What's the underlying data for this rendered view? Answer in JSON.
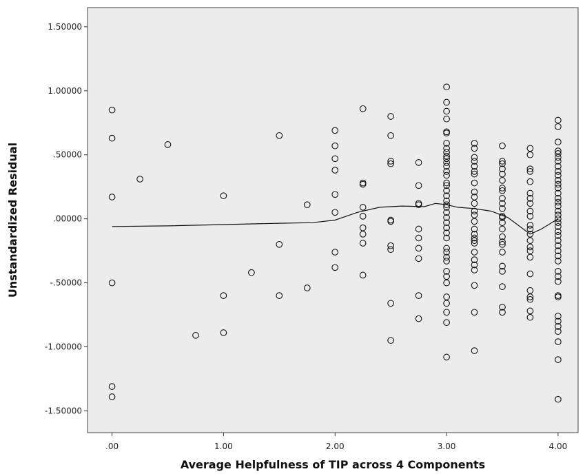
{
  "chart_data": {
    "type": "scatter",
    "title": "",
    "xlabel": "Average Helpfulness of TIP across 4 Components",
    "ylabel": "Unstandardized Residual",
    "xlim": [
      -0.22,
      4.18
    ],
    "ylim": [
      -1.67,
      1.65
    ],
    "x_ticks": [
      0,
      1,
      2,
      3,
      4
    ],
    "x_tick_labels": [
      ".00",
      "1.00",
      "2.00",
      "3.00",
      "4.00"
    ],
    "y_ticks": [
      1.5,
      1.0,
      0.5,
      0.0,
      -0.5,
      -1.0,
      -1.5
    ],
    "y_tick_labels": [
      "1.50000",
      "1.00000",
      ".50000",
      ".00000",
      "-.50000",
      "-1.00000",
      "-1.50000"
    ],
    "grid": false,
    "colors": {
      "plot_background": "#ececec",
      "marker": "#111111",
      "line": "#111111"
    },
    "points_by_x": [
      {
        "x": 0.0,
        "y": [
          0.85,
          0.63,
          0.17,
          -0.5,
          -1.31,
          -1.39
        ]
      },
      {
        "x": 0.25,
        "y": [
          0.31
        ]
      },
      {
        "x": 0.5,
        "y": [
          0.58
        ]
      },
      {
        "x": 0.75,
        "y": [
          -0.91
        ]
      },
      {
        "x": 1.0,
        "y": [
          0.18,
          -0.6,
          -0.89
        ]
      },
      {
        "x": 1.25,
        "y": [
          -0.42
        ]
      },
      {
        "x": 1.5,
        "y": [
          0.65,
          -0.2,
          -0.6
        ]
      },
      {
        "x": 1.75,
        "y": [
          0.11,
          -0.54
        ]
      },
      {
        "x": 2.0,
        "y": [
          0.69,
          0.57,
          0.47,
          0.38,
          0.19,
          0.05,
          -0.26,
          -0.38
        ]
      },
      {
        "x": 2.25,
        "y": [
          0.86,
          0.28,
          0.27,
          0.09,
          0.02,
          -0.07,
          -0.12,
          -0.19,
          -0.44
        ]
      },
      {
        "x": 2.5,
        "y": [
          0.8,
          0.65,
          0.45,
          0.43,
          -0.01,
          -0.02,
          -0.21,
          -0.24,
          -0.66,
          -0.95
        ]
      },
      {
        "x": 2.75,
        "y": [
          0.44,
          0.26,
          0.12,
          0.11,
          -0.08,
          -0.15,
          -0.23,
          -0.31,
          -0.6,
          -0.78
        ]
      },
      {
        "x": 3.0,
        "y": [
          1.03,
          0.91,
          0.84,
          0.78,
          0.68,
          0.67,
          0.59,
          0.55,
          0.52,
          0.49,
          0.47,
          0.44,
          0.41,
          0.37,
          0.34,
          0.28,
          0.26,
          0.22,
          0.18,
          0.14,
          0.11,
          0.09,
          0.05,
          0.01,
          -0.03,
          -0.07,
          -0.11,
          -0.15,
          -0.23,
          -0.26,
          -0.3,
          -0.33,
          -0.41,
          -0.45,
          -0.5,
          -0.61,
          -0.66,
          -0.73,
          -0.81,
          -1.08
        ]
      },
      {
        "x": 3.25,
        "y": [
          0.59,
          0.55,
          0.48,
          0.45,
          0.41,
          0.37,
          0.35,
          0.28,
          0.21,
          0.17,
          0.12,
          0.06,
          0.03,
          -0.02,
          -0.08,
          -0.12,
          -0.15,
          -0.17,
          -0.19,
          -0.26,
          -0.32,
          -0.36,
          -0.4,
          -0.52,
          -0.73,
          -1.03
        ]
      },
      {
        "x": 3.5,
        "y": [
          0.57,
          0.45,
          0.43,
          0.39,
          0.35,
          0.3,
          0.24,
          0.22,
          0.16,
          0.12,
          0.08,
          0.02,
          0.01,
          -0.03,
          -0.08,
          -0.14,
          -0.18,
          -0.2,
          -0.26,
          -0.37,
          -0.41,
          -0.53,
          -0.69,
          -0.73
        ]
      },
      {
        "x": 3.75,
        "y": [
          0.55,
          0.5,
          0.39,
          0.37,
          0.29,
          0.2,
          0.16,
          0.12,
          0.06,
          0.02,
          -0.05,
          -0.08,
          -0.12,
          -0.17,
          -0.22,
          -0.25,
          -0.3,
          -0.43,
          -0.56,
          -0.61,
          -0.63,
          -0.72,
          -0.77
        ]
      },
      {
        "x": 4.0,
        "y": [
          0.77,
          0.72,
          0.6,
          0.53,
          0.51,
          0.48,
          0.45,
          0.41,
          0.37,
          0.34,
          0.3,
          0.27,
          0.24,
          0.2,
          0.16,
          0.13,
          0.1,
          0.06,
          0.03,
          0.0,
          -0.03,
          -0.06,
          -0.1,
          -0.13,
          -0.17,
          -0.21,
          -0.25,
          -0.29,
          -0.33,
          -0.41,
          -0.45,
          -0.49,
          -0.6,
          -0.61,
          -0.76,
          -0.8,
          -0.84,
          -0.88,
          -0.96,
          -1.1,
          -1.41
        ]
      }
    ],
    "fit_line": {
      "x": [
        0.0,
        0.5,
        1.0,
        1.5,
        1.8,
        2.0,
        2.2,
        2.4,
        2.6,
        2.8,
        2.9,
        3.0,
        3.1,
        3.25,
        3.4,
        3.55,
        3.75,
        3.85,
        4.0
      ],
      "y": [
        -0.06,
        -0.055,
        -0.045,
        -0.035,
        -0.03,
        -0.01,
        0.05,
        0.09,
        0.1,
        0.095,
        0.12,
        0.11,
        0.09,
        0.08,
        0.06,
        0.01,
        -0.12,
        -0.08,
        0.0
      ]
    }
  }
}
